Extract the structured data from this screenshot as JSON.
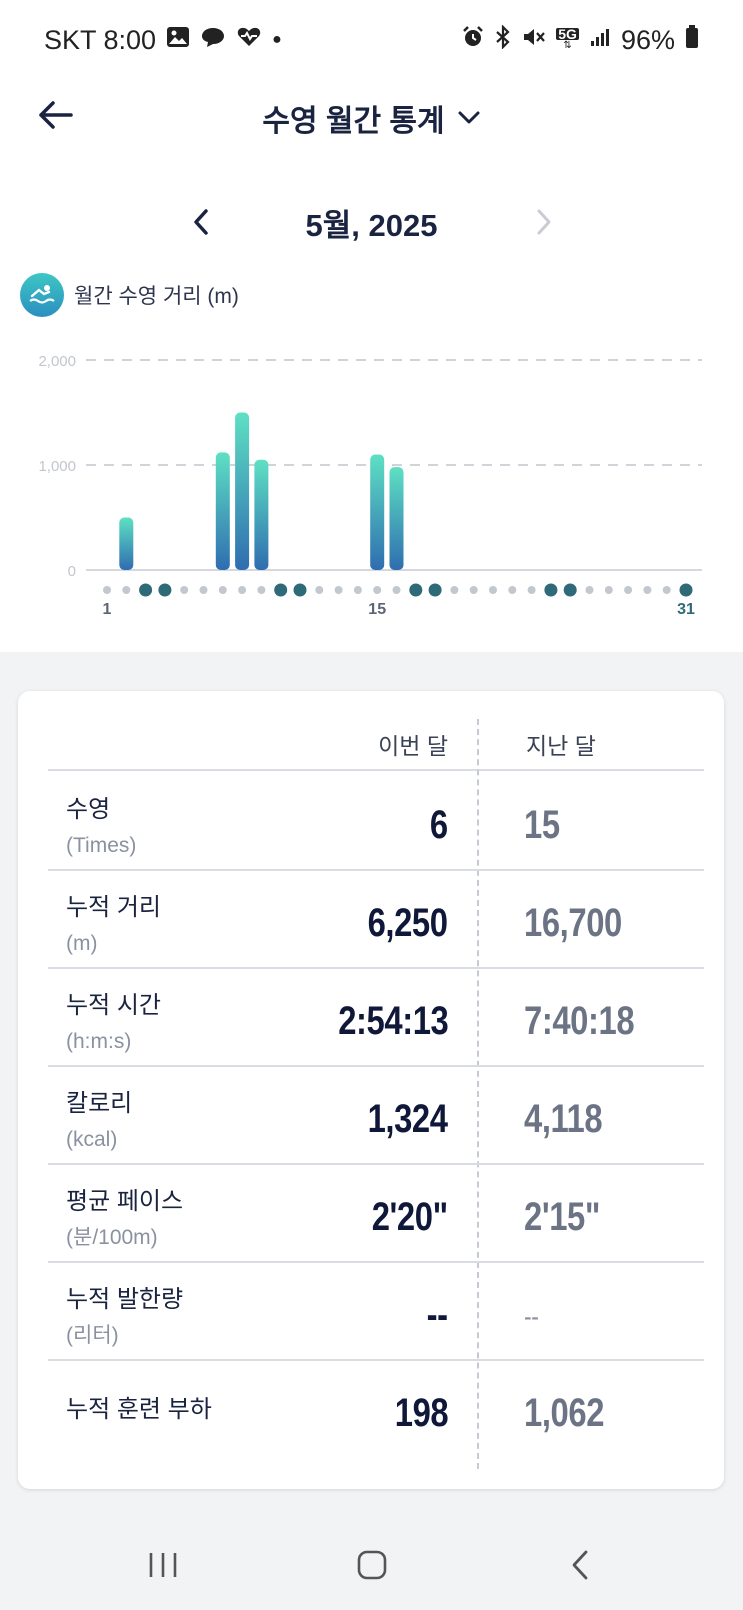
{
  "status_bar": {
    "carrier_time": "SKT 8:00",
    "network": "5G",
    "battery": "96%",
    "left_icons": [
      "gallery-icon",
      "chat-bubble-icon",
      "health-heart-icon",
      "dot-icon"
    ],
    "right_icons": [
      "alarm-icon",
      "bluetooth-icon",
      "mute-icon",
      "signal-icon",
      "battery-icon"
    ]
  },
  "header": {
    "title": "수영 월간 통계"
  },
  "month_nav": {
    "label": "5월, 2025"
  },
  "chart_legend": {
    "label": "월간 수영 거리 (m)"
  },
  "chart_data": {
    "type": "bar",
    "ylabel": "월간 수영 거리 (m)",
    "ylim": [
      0,
      2000
    ],
    "yticks": [
      "0",
      "1,000",
      "2,000"
    ],
    "xticks": {
      "1": "1",
      "15": "15",
      "31": "31"
    },
    "grid": true,
    "colors": {
      "bar_top": "#5ee0c3",
      "bar_bottom": "#2f6db0",
      "active_dot": "#2f6a78",
      "inactive_dot": "#c3c7ce"
    },
    "days": [
      1,
      2,
      3,
      4,
      5,
      6,
      7,
      8,
      9,
      10,
      11,
      12,
      13,
      14,
      15,
      16,
      17,
      18,
      19,
      20,
      21,
      22,
      23,
      24,
      25,
      26,
      27,
      28,
      29,
      30,
      31
    ],
    "values": [
      0,
      500,
      0,
      0,
      0,
      0,
      1120,
      1500,
      1050,
      0,
      0,
      0,
      0,
      0,
      1100,
      980,
      0,
      0,
      0,
      0,
      0,
      0,
      0,
      0,
      0,
      0,
      0,
      0,
      0,
      0,
      0
    ],
    "active_days": [
      3,
      4,
      10,
      11,
      17,
      18,
      24,
      25,
      31
    ]
  },
  "table": {
    "col_this": "이번 달",
    "col_last": "지난 달",
    "rows": [
      {
        "label": "수영",
        "unit": "(Times)",
        "this": "6",
        "last": "15"
      },
      {
        "label": "누적 거리",
        "unit": "(m)",
        "this": "6,250",
        "last": "16,700"
      },
      {
        "label": "누적 시간",
        "unit": "(h:m:s)",
        "this": "2:54:13",
        "last": "7:40:18"
      },
      {
        "label": "칼로리",
        "unit": "(kcal)",
        "this": "1,324",
        "last": "4,118"
      },
      {
        "label": "평균 페이스",
        "unit": "(분/100m)",
        "this": "2'20\"",
        "last": "2'15\""
      },
      {
        "label": "누적 발한량",
        "unit": "(리터)",
        "this": "--",
        "last": "--"
      },
      {
        "label": "누적 훈련 부하",
        "unit": "",
        "this": "198",
        "last": "1,062"
      }
    ]
  },
  "nav_bar": {
    "icons": [
      "recent-apps-icon",
      "home-icon",
      "back-icon"
    ]
  }
}
